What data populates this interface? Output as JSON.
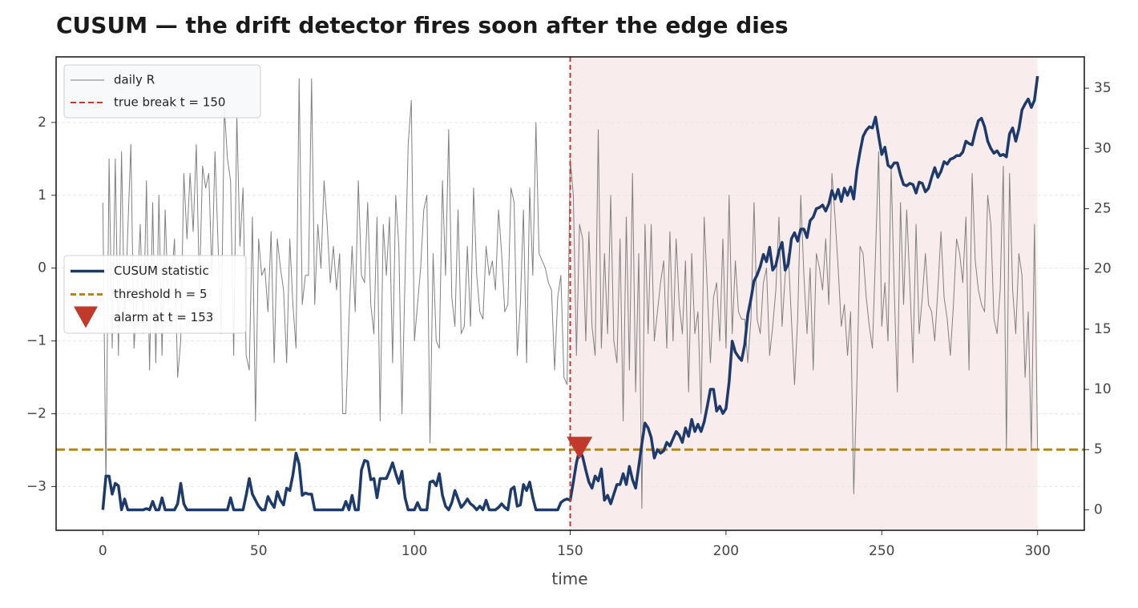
{
  "chart_data": {
    "type": "line",
    "title": "CUSUM — the drift detector fires soon after the edge dies",
    "xlabel": "time",
    "xlim": [
      -15,
      315
    ],
    "ylim": [
      -3.6,
      2.9
    ],
    "y2lim": [
      -1.7,
      37.6
    ],
    "xticks": [
      0,
      50,
      100,
      150,
      200,
      250,
      300
    ],
    "yticks": [
      {
        "value": -3,
        "label": "−3"
      },
      {
        "value": -2,
        "label": "−2"
      },
      {
        "value": -1,
        "label": "−1"
      },
      0,
      1,
      2
    ],
    "y2ticks": [
      0,
      5,
      10,
      15,
      20,
      25,
      30,
      35
    ],
    "grid": true,
    "x": [
      0,
      1,
      2,
      3,
      4,
      5,
      6,
      7,
      8,
      9,
      10,
      11,
      12,
      13,
      14,
      15,
      16,
      17,
      18,
      19,
      20,
      21,
      22,
      23,
      24,
      25,
      26,
      27,
      28,
      29,
      30,
      31,
      32,
      33,
      34,
      35,
      36,
      37,
      38,
      39,
      40,
      41,
      42,
      43,
      44,
      45,
      46,
      47,
      48,
      49,
      50,
      51,
      52,
      53,
      54,
      55,
      56,
      57,
      58,
      59,
      60,
      61,
      62,
      63,
      64,
      65,
      66,
      67,
      68,
      69,
      70,
      71,
      72,
      73,
      74,
      75,
      76,
      77,
      78,
      79,
      80,
      81,
      82,
      83,
      84,
      85,
      86,
      87,
      88,
      89,
      90,
      91,
      92,
      93,
      94,
      95,
      96,
      97,
      98,
      99,
      100,
      101,
      102,
      103,
      104,
      105,
      106,
      107,
      108,
      109,
      110,
      111,
      112,
      113,
      114,
      115,
      116,
      117,
      118,
      119,
      120,
      121,
      122,
      123,
      124,
      125,
      126,
      127,
      128,
      129,
      130,
      131,
      132,
      133,
      134,
      135,
      136,
      137,
      138,
      139,
      140,
      141,
      142,
      143,
      144,
      145,
      146,
      147,
      148,
      149,
      150,
      151,
      152,
      153,
      154,
      155,
      156,
      157,
      158,
      159,
      160,
      161,
      162,
      163,
      164,
      165,
      166,
      167,
      168,
      169,
      170,
      171,
      172,
      173,
      174,
      175,
      176,
      177,
      178,
      179,
      180,
      181,
      182,
      183,
      184,
      185,
      186,
      187,
      188,
      189,
      190,
      191,
      192,
      193,
      194,
      195,
      196,
      197,
      198,
      199,
      200,
      201,
      202,
      203,
      204,
      205,
      206,
      207,
      208,
      209,
      210,
      211,
      212,
      213,
      214,
      215,
      216,
      217,
      218,
      219,
      220,
      221,
      222,
      223,
      224,
      225,
      226,
      227,
      228,
      229,
      230,
      231,
      232,
      233,
      234,
      235,
      236,
      237,
      238,
      239,
      240,
      241,
      242,
      243,
      244,
      245,
      246,
      247,
      248,
      249,
      250,
      251,
      252,
      253,
      254,
      255,
      256,
      257,
      258,
      259,
      260,
      261,
      262,
      263,
      264,
      265,
      266,
      267,
      268,
      269,
      270,
      271,
      272,
      273,
      274,
      275,
      276,
      277,
      278,
      279,
      280,
      281,
      282,
      283,
      284,
      285,
      286,
      287,
      288,
      289,
      290,
      291,
      292,
      293,
      294,
      295,
      296,
      297,
      298,
      299,
      300
    ],
    "series": [
      {
        "name": "daily R",
        "color": "#808080",
        "width": 1,
        "axis": "y",
        "legend": "upper left",
        "values": [
          0.9,
          -3.0,
          1.5,
          -1.1,
          1.5,
          -1.2,
          1.6,
          -0.8,
          0.5,
          1.7,
          -1.1,
          -0.4,
          0.6,
          -0.9,
          1.2,
          -1.4,
          0.9,
          -1.3,
          1.0,
          -1.2,
          0.8,
          -0.5,
          -0.2,
          0.4,
          -1.5,
          -1.0,
          1.3,
          0.4,
          1.3,
          0.5,
          1.7,
          -0.3,
          1.4,
          1.1,
          1.3,
          -0.1,
          1.6,
          0.3,
          -0.9,
          2.2,
          1.5,
          1.2,
          -1.2,
          2.1,
          0.3,
          1.1,
          -1.2,
          -1.4,
          0.7,
          -2.1,
          0.4,
          -0.1,
          0.0,
          -0.6,
          0.5,
          -1.3,
          0.4,
          0.0,
          -0.3,
          -1.3,
          0.4,
          -0.5,
          -1.1,
          2.6,
          -0.5,
          -0.1,
          -0.1,
          2.6,
          -0.5,
          0.6,
          0.0,
          1.2,
          0.6,
          -0.2,
          0.3,
          -0.3,
          0.2,
          -2.0,
          -2.0,
          -0.7,
          0.3,
          -0.6,
          1.2,
          -0.1,
          -0.2,
          0.9,
          -0.5,
          -0.9,
          0.7,
          -2.1,
          0.6,
          -0.1,
          0.7,
          -1.3,
          1.0,
          0.3,
          -2.0,
          -0.1,
          1.7,
          2.3,
          -1.0,
          -0.5,
          0.0,
          0.8,
          1.0,
          -2.4,
          0.2,
          -1.0,
          -1.1,
          1.2,
          -0.1,
          1.9,
          -0.4,
          -0.8,
          0.8,
          -0.9,
          -0.8,
          0.3,
          -0.8,
          1.1,
          -0.1,
          -0.6,
          -0.7,
          0.3,
          -0.1,
          0.1,
          -0.3,
          0.8,
          0.2,
          -0.6,
          -0.5,
          1.1,
          0.9,
          -1.2,
          -0.5,
          0.8,
          -1.3,
          1.1,
          -0.1,
          2.0,
          0.2,
          0.1,
          0.0,
          -0.2,
          -0.3,
          -1.4,
          -0.4,
          -0.1,
          -1.5,
          -1.6,
          1.5,
          1.0,
          -1.2,
          0.6,
          0.4,
          -1.0,
          0.5,
          -0.8,
          -1.2,
          1.9,
          -1.1,
          0.2,
          -0.9,
          1.0,
          -1.0,
          -1.3,
          0.4,
          -2.1,
          0.7,
          -1.4,
          1.3,
          -1.7,
          0.2,
          -3.3,
          0.6,
          -0.9,
          0.6,
          -1.0,
          -0.6,
          -0.2,
          0.1,
          -1.1,
          0.5,
          -1.0,
          0.4,
          -0.5,
          -0.9,
          0.1,
          -1.7,
          0.2,
          -0.9,
          -0.6,
          -2.0,
          0.7,
          -0.3,
          -1.3,
          -0.4,
          -0.2,
          -1.0,
          0.4,
          -1.1,
          1.0,
          -0.9,
          0.1,
          -0.6,
          -0.7,
          -0.7,
          -1.3,
          -0.7,
          0.9,
          -0.7,
          -0.9,
          -0.2,
          0.0,
          -1.2,
          -0.8,
          -0.3,
          0.7,
          -0.8,
          -0.1,
          0.2,
          -0.7,
          -1.6,
          -0.7,
          1.0,
          -0.1,
          -0.9,
          0.0,
          -1.4,
          0.2,
          0.0,
          -0.3,
          0.4,
          -0.5,
          1.3,
          0.7,
          0.0,
          -0.8,
          -0.5,
          -1.2,
          -0.6,
          -3.1,
          -1.6,
          0.3,
          0.2,
          -0.4,
          -0.8,
          -1.1,
          0.2,
          1.6,
          -0.8,
          -0.2,
          -1.0,
          1.4,
          -0.3,
          -1.7,
          0.9,
          -0.5,
          0.8,
          -0.2,
          -1.3,
          0.6,
          -0.9,
          -0.4,
          0.2,
          -0.5,
          -0.6,
          -1.0,
          -0.3,
          0.5,
          -0.4,
          -0.7,
          -1.2,
          -0.5,
          0.4,
          0.2,
          -0.2,
          0.7,
          -1.4,
          1.3,
          0.1,
          -0.3,
          -0.5,
          -0.6,
          1.0,
          0.6,
          -0.7,
          -0.9,
          -0.3,
          1.4,
          -2.5,
          1.3,
          -0.3,
          -0.9,
          0.2,
          -0.1,
          -1.5,
          -0.6,
          -2.5,
          0.6,
          -2.5
        ]
      },
      {
        "name": "CUSUM statistic",
        "color": "#1c3a6b",
        "width": 3.5,
        "axis": "y2",
        "legend": "center left",
        "values": [
          0,
          2.8,
          2.8,
          1.3,
          2.2,
          2.0,
          0,
          0.9,
          0,
          0,
          0,
          0,
          0,
          0,
          0.1,
          0,
          0.7,
          0,
          0,
          1.0,
          0,
          0,
          0,
          0,
          0.5,
          2.2,
          0.5,
          0,
          0,
          0,
          0,
          0,
          0,
          0,
          0,
          0,
          0,
          0,
          0,
          0,
          0,
          1.0,
          0,
          0,
          0,
          0,
          1.2,
          2.6,
          1.3,
          0.8,
          0.3,
          0,
          0,
          1.1,
          0.6,
          0.2,
          1.5,
          0.8,
          0.4,
          1.8,
          1.6,
          2.9,
          4.7,
          3.8,
          1.2,
          1.4,
          1.3,
          1.3,
          0,
          0,
          0,
          0,
          0,
          0,
          0,
          0,
          0,
          0,
          0.7,
          0,
          1.2,
          0,
          0,
          3.3,
          4.1,
          4.0,
          2.5,
          2.6,
          1.0,
          2.6,
          2.6,
          2.6,
          3.2,
          3.9,
          3.0,
          2.2,
          3.2,
          1.0,
          0,
          0,
          0,
          0.6,
          0,
          0,
          0,
          2.3,
          2.4,
          2.0,
          3.0,
          1.2,
          0.3,
          0,
          0.6,
          1.6,
          0.9,
          0.2,
          0.5,
          0.9,
          0.5,
          0.3,
          0,
          0.3,
          0,
          0.8,
          0,
          0,
          0,
          0.2,
          0.5,
          0.2,
          0,
          1.7,
          1.9,
          0.3,
          0.4,
          2.1,
          1.6,
          2.3,
          1.0,
          0,
          0,
          0,
          0,
          0,
          0,
          0,
          0,
          0.6,
          0.8,
          0.9,
          0.8,
          2.3,
          3.9,
          5.0,
          4.4,
          3.3,
          2.3,
          1.8,
          2.8,
          2.4,
          3.4,
          0.8,
          1.2,
          0.5,
          1.3,
          2.1,
          2.1,
          3.0,
          2.1,
          3.6,
          2.5,
          1.8,
          3.6,
          5.5,
          7.2,
          6.8,
          6.0,
          4.3,
          5.0,
          4.7,
          4.9,
          5.6,
          5.3,
          5.9,
          6.5,
          6.2,
          5.6,
          6.8,
          6.1,
          7.5,
          6.5,
          7.1,
          6.5,
          7.3,
          8.6,
          10.0,
          10.0,
          8.2,
          8.6,
          8.0,
          8.4,
          10.6,
          14.0,
          13.1,
          12.7,
          12.4,
          13.7,
          16.2,
          17.5,
          19.0,
          19.5,
          20.2,
          21.2,
          20.6,
          21.8,
          19.9,
          20.3,
          21.5,
          22.2,
          19.9,
          20.4,
          22.5,
          23.0,
          22.3,
          23.3,
          23.3,
          22.6,
          24.0,
          24.3,
          25.0,
          25.1,
          25.3,
          24.8,
          25.4,
          26.5,
          25.8,
          26.6,
          25.6,
          26.7,
          26.1,
          26.8,
          25.8,
          28.2,
          29.7,
          31.0,
          31.5,
          31.8,
          31.7,
          32.6,
          31.0,
          29.5,
          30.1,
          28.6,
          28.4,
          28.8,
          28.8,
          27.8,
          27.0,
          26.9,
          27.1,
          27.0,
          26.3,
          27.2,
          27.1,
          26.4,
          26.7,
          27.6,
          28.4,
          27.6,
          28.1,
          28.9,
          28.7,
          29.1,
          29.2,
          29.4,
          29.4,
          29.7,
          30.6,
          30.4,
          30.3,
          31.4,
          32.3,
          32.5,
          31.8,
          30.6,
          30.0,
          29.6,
          29.8,
          29.4,
          29.5,
          29.3,
          31.2,
          31.7,
          30.6,
          31.6,
          33.2,
          33.7,
          34.1,
          33.4,
          34.0,
          36.0
        ]
      }
    ],
    "break": {
      "name": "true break t = 150",
      "x": 150,
      "color": "#c0392b",
      "legend": "upper left",
      "shade_x": [
        150,
        300
      ],
      "shade_color": "#f9ecec"
    },
    "threshold": {
      "name": "threshold h = 5",
      "value": 5,
      "axis": "y2",
      "color": "#b8860b",
      "legend": "center left"
    },
    "alarm": {
      "name": "alarm at t = 153",
      "x": 153,
      "y": 5,
      "axis": "y2",
      "color": "#c0392b",
      "legend": "center left"
    }
  }
}
